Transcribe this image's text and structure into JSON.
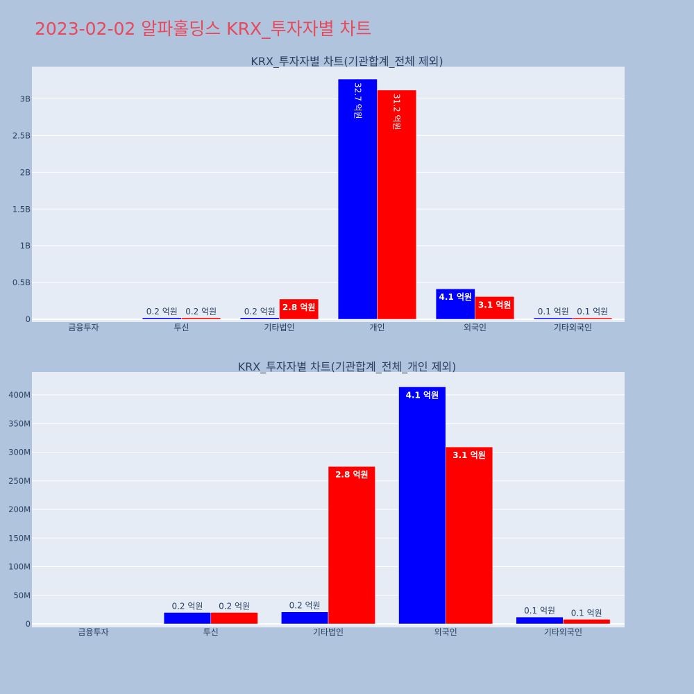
{
  "page": {
    "title": "2023-02-02 알파홀딩스 KRX_투자자별 차트",
    "background": "#b0c4de",
    "title_color": "#e8495a",
    "plot_background": "#e5ecf6"
  },
  "chart_data": [
    {
      "type": "bar",
      "title": "KRX_투자자별 차트(기관합계_전체 제외)",
      "categories": [
        "금융투자",
        "투신",
        "기타법인",
        "개인",
        "외국인",
        "기타외국인"
      ],
      "series": [
        {
          "color": "#0000ff",
          "values": [
            0,
            20000000,
            21000000,
            3270000000,
            414000000,
            12000000
          ],
          "labels": [
            "",
            "0.2 억원",
            "0.2 억원",
            "32.7 억원",
            "4.1 억원",
            "0.1 억원"
          ]
        },
        {
          "color": "#ff0000",
          "values": [
            0,
            20000000,
            275000000,
            3120000000,
            309000000,
            8000000
          ],
          "labels": [
            "",
            "0.2 억원",
            "2.8 억원",
            "31.2 억원",
            "3.1 억원",
            "0.1 억원"
          ]
        }
      ],
      "yticks": [
        0,
        500000000,
        1000000000,
        1500000000,
        2000000000,
        2500000000,
        3000000000
      ],
      "ytick_labels": [
        "0",
        "0.5B",
        "1B",
        "1.5B",
        "2B",
        "2.5B",
        "3B"
      ],
      "ylim": [
        0,
        3440000000
      ],
      "grid": true
    },
    {
      "type": "bar",
      "title": "KRX_투자자별 차트(기관합계_전체_개인 제외)",
      "categories": [
        "금융투자",
        "투신",
        "기타법인",
        "외국인",
        "기타외국인"
      ],
      "series": [
        {
          "color": "#0000ff",
          "values": [
            0,
            20000000,
            21000000,
            414000000,
            12000000
          ],
          "labels": [
            "",
            "0.2 억원",
            "0.2 억원",
            "4.1 억원",
            "0.1 억원"
          ]
        },
        {
          "color": "#ff0000",
          "values": [
            0,
            20000000,
            275000000,
            309000000,
            8000000
          ],
          "labels": [
            "",
            "0.2 억원",
            "2.8 억원",
            "3.1 억원",
            "0.1 억원"
          ]
        }
      ],
      "yticks": [
        0,
        50000000,
        100000000,
        150000000,
        200000000,
        250000000,
        300000000,
        350000000,
        400000000
      ],
      "ytick_labels": [
        "0",
        "50M",
        "100M",
        "150M",
        "200M",
        "250M",
        "300M",
        "350M",
        "400M"
      ],
      "ylim": [
        0,
        440000000
      ],
      "grid": true
    }
  ]
}
